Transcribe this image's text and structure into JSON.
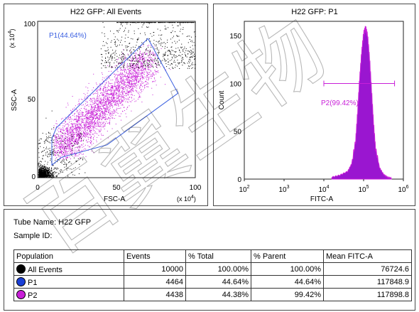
{
  "plot1": {
    "title": "H22 GFP: All Events",
    "xlabel": "FSC-A",
    "ylabel": "SSC-A",
    "x_multiplier": "(x 10",
    "y_multiplier": "(x 10",
    "multiplier_exp": "4",
    "gate_label": "P1(44.64%)"
  },
  "plot2": {
    "title": "H22 GFP: P1",
    "xlabel": "FITC-A",
    "ylabel": "Count",
    "gate_label": "P2(99.42%)"
  },
  "info": {
    "tube_name_label": "Tube Name:",
    "tube_name_value": "H22 GFP",
    "sample_id_label": "Sample ID:"
  },
  "table": {
    "headers": [
      "Population",
      "Events",
      "% Total",
      "% Parent",
      "Mean FITC-A"
    ],
    "rows": [
      {
        "population": "All Events",
        "events": "10000",
        "total": "100.00%",
        "parent": "100.00%",
        "mean": "76724.6",
        "color": "#000000"
      },
      {
        "population": "P1",
        "events": "4464",
        "total": "44.64%",
        "parent": "44.64%",
        "mean": "117848.9",
        "color": "#1a3fd6"
      },
      {
        "population": "P2",
        "events": "4438",
        "total": "44.38%",
        "parent": "99.42%",
        "mean": "117898.8",
        "color": "#c81fd8"
      }
    ]
  },
  "watermark_text": "百翼生物",
  "colors": {
    "gate": "#3a5fe0",
    "p2": "#c81fd8",
    "histogram_fill": "#9a16d0",
    "black_events": "#000000"
  },
  "chart_data": [
    {
      "type": "scatter",
      "title": "H22 GFP: All Events",
      "xlabel": "FSC-A",
      "ylabel": "SSC-A",
      "xlim": [
        0,
        100
      ],
      "ylim": [
        0,
        100
      ],
      "x_ticks": [
        "0",
        "50",
        "100"
      ],
      "y_ticks": [
        "0",
        "50",
        "100"
      ],
      "units": "x 10^4",
      "gate": {
        "name": "P1(44.64%)",
        "polygon": [
          [
            9,
            25
          ],
          [
            12,
            32
          ],
          [
            70,
            89
          ],
          [
            89,
            54
          ],
          [
            44,
            21
          ],
          [
            15,
            13
          ],
          [
            9,
            8
          ]
        ]
      },
      "description_values": {
        "events_total": 10000,
        "p1_percent": 44.64
      }
    },
    {
      "type": "area",
      "title": "H22 GFP: P1",
      "xlabel": "FITC-A",
      "ylabel": "Count",
      "x_scale": "log",
      "xlim": [
        100,
        1000000
      ],
      "ylim": [
        0,
        165
      ],
      "x_ticks": [
        "10^2",
        "10^3",
        "10^4",
        "10^5",
        "10^6"
      ],
      "y_ticks": [
        "0",
        "50",
        "100",
        "150"
      ],
      "log_x": [
        4.2,
        4.4,
        4.6,
        4.7,
        4.8,
        4.85,
        4.9,
        4.95,
        5.0,
        5.05,
        5.1,
        5.15,
        5.2,
        5.25,
        5.3,
        5.4,
        5.5,
        5.6,
        5.7
      ],
      "counts": [
        2,
        4,
        8,
        16,
        40,
        70,
        105,
        132,
        152,
        158,
        150,
        126,
        92,
        58,
        32,
        12,
        5,
        2,
        1
      ],
      "gate": {
        "name": "P2(99.42%)",
        "x_range": [
          10000,
          600000
        ],
        "y": 100
      }
    }
  ]
}
